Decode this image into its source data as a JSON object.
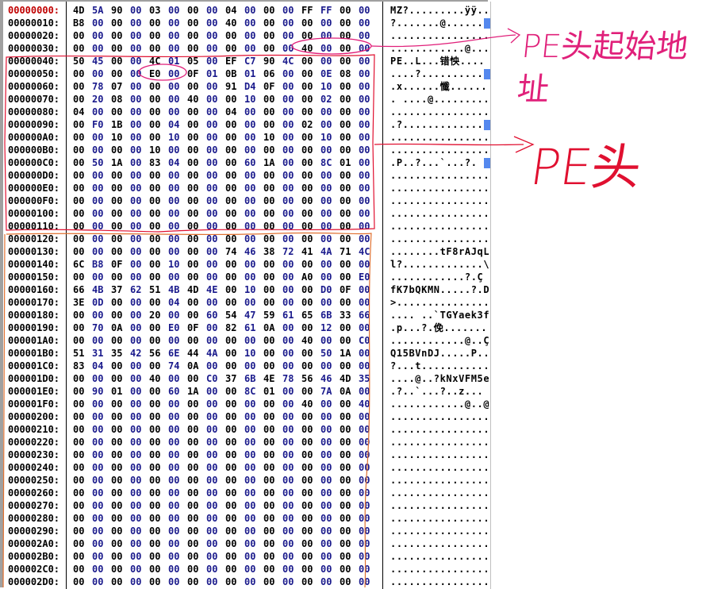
{
  "hex_view": {
    "current_offset": "00000000",
    "rows": [
      {
        "addr": "00000000:",
        "bytes": "4D 5A 90 00 03 00 00 00 04 00 00 00 FF FF 00 00",
        "ascii": "MZ?.........ÿÿ..",
        "marker": false
      },
      {
        "addr": "00000010:",
        "bytes": "B8 00 00 00 00 00 00 00 40 00 00 00 00 00 00 00",
        "ascii": "?.......@......",
        "marker": true
      },
      {
        "addr": "00000020:",
        "bytes": "00 00 00 00 00 00 00 00 00 00 00 00 00 00 00 00",
        "ascii": "................",
        "marker": false
      },
      {
        "addr": "00000030:",
        "bytes": "00 00 00 00 00 00 00 00 00 00 00 00 40 00 00 00",
        "ascii": "............@...",
        "marker": false
      },
      {
        "addr": "00000040:",
        "bytes": "50 45 00 00 4C 01 05 00 EF C7 90 4C 00 00 00 00",
        "ascii": "PE..L...错怏....",
        "marker": false
      },
      {
        "addr": "00000050:",
        "bytes": "00 00 00 00 E0 00 0F 01 0B 01 06 00 00 0E 08 00",
        "ascii": "....?..........",
        "marker": true
      },
      {
        "addr": "00000060:",
        "bytes": "00 78 07 00 00 00 00 00 91 D4 0F 00 00 10 00 00",
        "ascii": ".x......懺......",
        "marker": false
      },
      {
        "addr": "00000070:",
        "bytes": "00 20 08 00 00 00 40 00 00 10 00 00 00 02 00 00",
        "ascii": ". ....@.........",
        "marker": false
      },
      {
        "addr": "00000080:",
        "bytes": "04 00 00 00 00 00 00 00 04 00 00 00 00 00 00 00",
        "ascii": "................",
        "marker": false
      },
      {
        "addr": "00000090:",
        "bytes": "00 F0 1B 00 00 04 00 00 00 00 00 00 02 00 00 00",
        "ascii": ".?.............",
        "marker": true
      },
      {
        "addr": "000000A0:",
        "bytes": "00 00 10 00 00 10 00 00 00 00 10 00 00 10 00 00",
        "ascii": "................",
        "marker": false
      },
      {
        "addr": "000000B0:",
        "bytes": "00 00 00 00 10 00 00 00 00 00 00 00 00 00 00 00",
        "ascii": "................",
        "marker": false
      },
      {
        "addr": "000000C0:",
        "bytes": "00 50 1A 00 83 04 00 00 00 60 1A 00 00 8C 01 00",
        "ascii": ".P..?...`...?.",
        "marker": true
      },
      {
        "addr": "000000D0:",
        "bytes": "00 00 00 00 00 00 00 00 00 00 00 00 00 00 00 00",
        "ascii": "................",
        "marker": false
      },
      {
        "addr": "000000E0:",
        "bytes": "00 00 00 00 00 00 00 00 00 00 00 00 00 00 00 00",
        "ascii": "................",
        "marker": false
      },
      {
        "addr": "000000F0:",
        "bytes": "00 00 00 00 00 00 00 00 00 00 00 00 00 00 00 00",
        "ascii": "................",
        "marker": false
      },
      {
        "addr": "00000100:",
        "bytes": "00 00 00 00 00 00 00 00 00 00 00 00 00 00 00 00",
        "ascii": "................",
        "marker": false
      },
      {
        "addr": "00000110:",
        "bytes": "00 00 00 00 00 00 00 00 00 00 00 00 00 00 00 00",
        "ascii": "................",
        "marker": false
      },
      {
        "addr": "00000120:",
        "bytes": "00 00 00 00 00 00 00 00 00 00 00 00 00 00 00 00",
        "ascii": "................",
        "marker": false
      },
      {
        "addr": "00000130:",
        "bytes": "00 00 00 00 00 00 00 00 74 46 38 72 41 4A 71 4C",
        "ascii": "........tF8rAJqL",
        "marker": false
      },
      {
        "addr": "00000140:",
        "bytes": "6C B8 0F 00 00 10 00 00 00 00 00 00 00 00 00 00",
        "ascii": "l?.............\\",
        "marker": false
      },
      {
        "addr": "00000150:",
        "bytes": "00 00 00 00 00 00 00 00 00 00 00 00 A0 00 00 E0",
        "ascii": "............?.Ç",
        "marker": false
      },
      {
        "addr": "00000160:",
        "bytes": "66 4B 37 62 51 4B 4D 4E 00 10 00 00 00 D0 0F 00",
        "ascii": "fK7bQKMN.....?.D",
        "marker": false
      },
      {
        "addr": "00000170:",
        "bytes": "3E 0D 00 00 00 04 00 00 00 00 00 00 00 00 00 00",
        "ascii": ">...............",
        "marker": false
      },
      {
        "addr": "00000180:",
        "bytes": "00 00 00 00 20 00 00 60 54 47 59 61 65 6B 33 66",
        "ascii": ".... ..`TGYaek3f",
        "marker": false
      },
      {
        "addr": "00000190:",
        "bytes": "00 70 0A 00 00 E0 0F 00 82 61 0A 00 00 12 00 00",
        "ascii": ".p...?.俛.......",
        "marker": false
      },
      {
        "addr": "000001A0:",
        "bytes": "00 00 00 00 00 00 00 00 00 00 00 00 40 00 00 C0",
        "ascii": "............@..Ç",
        "marker": false
      },
      {
        "addr": "000001B0:",
        "bytes": "51 31 35 42 56 6E 44 4A 00 10 00 00 00 50 1A 00",
        "ascii": "Q15BVnDJ.....P..",
        "marker": false
      },
      {
        "addr": "000001C0:",
        "bytes": "83 04 00 00 00 74 0A 00 00 00 00 00 00 00 00 00",
        "ascii": "?...t...........",
        "marker": false
      },
      {
        "addr": "000001D0:",
        "bytes": "00 00 00 00 40 00 00 C0 37 6B 4E 78 56 46 4D 35",
        "ascii": "....@..?kNxVFM5e",
        "marker": false
      },
      {
        "addr": "000001E0:",
        "bytes": "00 90 01 00 00 60 1A 00 00 8C 01 00 00 7A 0A 00",
        "ascii": ".?..`...?..z...",
        "marker": false
      },
      {
        "addr": "000001F0:",
        "bytes": "00 00 00 00 00 00 00 00 00 00 00 00 40 00 00 40",
        "ascii": "............@..@",
        "marker": false
      },
      {
        "addr": "00000200:",
        "bytes": "00 00 00 00 00 00 00 00 00 00 00 00 00 00 00 00",
        "ascii": "................",
        "marker": false
      },
      {
        "addr": "00000210:",
        "bytes": "00 00 00 00 00 00 00 00 00 00 00 00 00 00 00 00",
        "ascii": "................",
        "marker": false
      },
      {
        "addr": "00000220:",
        "bytes": "00 00 00 00 00 00 00 00 00 00 00 00 00 00 00 00",
        "ascii": "................",
        "marker": false
      },
      {
        "addr": "00000230:",
        "bytes": "00 00 00 00 00 00 00 00 00 00 00 00 00 00 00 00",
        "ascii": "................",
        "marker": false
      },
      {
        "addr": "00000240:",
        "bytes": "00 00 00 00 00 00 00 00 00 00 00 00 00 00 00 00",
        "ascii": "................",
        "marker": false
      },
      {
        "addr": "00000250:",
        "bytes": "00 00 00 00 00 00 00 00 00 00 00 00 00 00 00 00",
        "ascii": "................",
        "marker": false
      },
      {
        "addr": "00000260:",
        "bytes": "00 00 00 00 00 00 00 00 00 00 00 00 00 00 00 00",
        "ascii": "................",
        "marker": false
      },
      {
        "addr": "00000270:",
        "bytes": "00 00 00 00 00 00 00 00 00 00 00 00 00 00 00 00",
        "ascii": "................",
        "marker": false
      },
      {
        "addr": "00000280:",
        "bytes": "00 00 00 00 00 00 00 00 00 00 00 00 00 00 00 00",
        "ascii": "................",
        "marker": false
      },
      {
        "addr": "00000290:",
        "bytes": "00 00 00 00 00 00 00 00 00 00 00 00 00 00 00 00",
        "ascii": "................",
        "marker": false
      },
      {
        "addr": "000002A0:",
        "bytes": "00 00 00 00 00 00 00 00 00 00 00 00 00 00 00 00",
        "ascii": "................",
        "marker": false
      },
      {
        "addr": "000002B0:",
        "bytes": "00 00 00 00 00 00 00 00 00 00 00 00 00 00 00 00",
        "ascii": "................",
        "marker": false
      },
      {
        "addr": "000002C0:",
        "bytes": "00 00 00 00 00 00 00 00 00 00 00 00 00 00 00 00",
        "ascii": "................",
        "marker": false
      },
      {
        "addr": "000002D0:",
        "bytes": "00 00 00 00 00 00 00 00 00 00 00 00 00 00 00 00",
        "ascii": "................",
        "marker": false
      }
    ]
  },
  "annotations": {
    "pe_header_offset_note": "PE头起始地址",
    "pe_header_note": "PE头",
    "colors": {
      "offset_note": "#e0207a",
      "pe_header_note": "#e01030",
      "section_box": "#e07030",
      "current_address": "#c00000",
      "byte_odd": "#1a1a8c"
    }
  }
}
